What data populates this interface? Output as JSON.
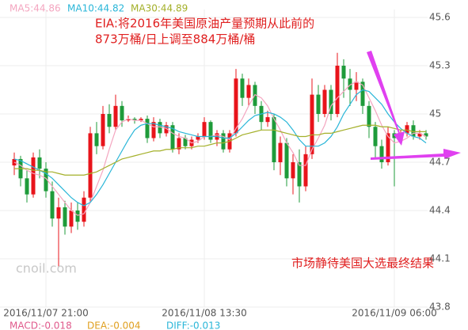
{
  "chart_data": {
    "type": "candlestick",
    "legend": [
      {
        "name": "MA5:44.86",
        "color": "#f4a6c0"
      },
      {
        "name": "MA10:44.82",
        "color": "#2ab6d8"
      },
      {
        "name": "MA30:44.89",
        "color": "#a4b02a"
      }
    ],
    "series": [
      {
        "name": "MA5",
        "color": "#f4a6c0",
        "values": [
          44.7,
          44.68,
          44.65,
          44.63,
          44.62,
          44.6,
          44.55,
          44.5,
          44.45,
          44.4,
          44.37,
          44.38,
          44.45,
          44.55,
          44.65,
          44.78,
          44.9,
          44.95,
          44.97,
          44.96,
          44.96,
          44.94,
          44.92,
          44.92,
          44.91,
          44.88,
          44.86,
          44.85,
          44.82,
          44.83,
          44.86,
          44.86,
          44.87,
          44.86,
          44.84,
          44.91,
          44.97,
          45.05,
          45.12,
          45.1,
          45.05,
          44.97,
          44.9,
          44.82,
          44.76,
          44.68,
          44.68,
          44.78,
          44.85,
          44.93,
          45.05,
          45.1,
          45.14,
          45.18,
          45.2,
          45.18,
          45.1,
          45.02,
          44.93,
          44.86,
          44.82,
          44.83,
          44.85,
          44.88,
          44.88,
          44.86
        ]
      },
      {
        "name": "MA10",
        "color": "#2ab6d8",
        "values": [
          44.72,
          44.71,
          44.69,
          44.67,
          44.65,
          44.63,
          44.6,
          44.56,
          44.52,
          44.48,
          44.45,
          44.43,
          44.45,
          44.5,
          44.56,
          44.63,
          44.7,
          44.77,
          44.84,
          44.9,
          44.93,
          44.94,
          44.94,
          44.93,
          44.92,
          44.91,
          44.89,
          44.88,
          44.87,
          44.86,
          44.86,
          44.86,
          44.86,
          44.85,
          44.85,
          44.88,
          44.92,
          44.96,
          44.99,
          45.0,
          45.01,
          45.0,
          44.98,
          44.95,
          44.9,
          44.84,
          44.8,
          44.8,
          44.8,
          44.82,
          44.86,
          44.92,
          45.0,
          45.06,
          45.12,
          45.15,
          45.14,
          45.1,
          45.06,
          45.0,
          44.95,
          44.91,
          44.88,
          44.86,
          44.85,
          44.82
        ]
      },
      {
        "name": "MA30",
        "color": "#a4b02a",
        "values": [
          44.66,
          44.66,
          44.66,
          44.65,
          44.65,
          44.64,
          44.64,
          44.63,
          44.62,
          44.62,
          44.62,
          44.62,
          44.63,
          44.64,
          44.66,
          44.68,
          44.7,
          44.72,
          44.73,
          44.74,
          44.75,
          44.76,
          44.77,
          44.77,
          44.78,
          44.78,
          44.79,
          44.79,
          44.79,
          44.8,
          44.8,
          44.81,
          44.82,
          44.82,
          44.83,
          44.85,
          44.87,
          44.88,
          44.89,
          44.9,
          44.9,
          44.9,
          44.89,
          44.88,
          44.87,
          44.86,
          44.86,
          44.87,
          44.87,
          44.88,
          44.88,
          44.89,
          44.9,
          44.91,
          44.92,
          44.93,
          44.93,
          44.93,
          44.92,
          44.92,
          44.91,
          44.9,
          44.9,
          44.89,
          44.89,
          44.89
        ]
      }
    ],
    "categories": [
      null,
      null,
      null,
      null,
      null,
      "2016/11/07 21:00",
      null,
      null,
      null,
      null,
      null,
      null,
      null,
      null,
      null,
      null,
      null,
      null,
      null,
      null,
      null,
      null,
      null,
      null,
      null,
      null,
      null,
      null,
      null,
      null,
      "2016/11/08 13:30",
      null,
      null,
      null,
      null,
      null,
      null,
      null,
      null,
      null,
      null,
      null,
      null,
      null,
      null,
      null,
      null,
      null,
      null,
      null,
      null,
      null,
      null,
      null,
      null,
      null,
      null,
      null,
      null,
      null,
      "2016/11/09 06:00",
      null,
      null,
      null,
      null,
      null
    ],
    "open": [
      44.68,
      44.72,
      44.6,
      44.5,
      44.73,
      44.66,
      44.52,
      44.35,
      44.42,
      44.3,
      44.4,
      44.33,
      44.48,
      44.88,
      44.8,
      45.0,
      44.92,
      45.05,
      44.96,
      44.97,
      44.96,
      44.97,
      44.85,
      44.95,
      44.88,
      44.93,
      44.78,
      44.85,
      44.8,
      44.84,
      44.86,
      44.95,
      44.84,
      44.88,
      44.78,
      44.88,
      45.22,
      45.1,
      45.18,
      45.05,
      44.95,
      44.98,
      44.7,
      44.82,
      44.6,
      44.7,
      44.55,
      44.75,
      45.12,
      45.0,
      45.15,
      45.0,
      45.3,
      45.22,
      45.15,
      45.2,
      45.05,
      44.92,
      44.8,
      44.7,
      44.88,
      44.85,
      44.88,
      44.93,
      44.86,
      44.88
    ],
    "high": [
      44.76,
      44.74,
      44.65,
      44.76,
      44.78,
      44.7,
      44.58,
      44.48,
      44.46,
      44.45,
      44.45,
      44.52,
      44.92,
      44.95,
      45.05,
      45.06,
      45.12,
      45.08,
      44.99,
      44.98,
      44.98,
      44.99,
      44.98,
      44.97,
      44.95,
      44.95,
      44.88,
      44.87,
      44.86,
      44.88,
      44.98,
      44.96,
      44.9,
      44.9,
      44.9,
      45.28,
      45.25,
      45.22,
      45.2,
      45.08,
      45.02,
      45.0,
      44.86,
      44.85,
      44.75,
      44.78,
      44.8,
      45.22,
      45.18,
      45.18,
      45.18,
      45.38,
      45.34,
      45.28,
      45.26,
      45.22,
      45.08,
      44.95,
      44.84,
      44.92,
      44.9,
      44.9,
      44.95,
      44.96,
      44.9,
      44.9
    ],
    "low": [
      44.62,
      44.55,
      44.45,
      44.48,
      44.6,
      44.48,
      44.3,
      44.05,
      44.25,
      44.26,
      44.28,
      44.3,
      44.45,
      44.75,
      44.78,
      44.88,
      44.9,
      44.92,
      44.95,
      44.94,
      44.95,
      44.82,
      44.83,
      44.85,
      44.86,
      44.76,
      44.75,
      44.78,
      44.78,
      44.82,
      44.84,
      44.82,
      44.8,
      44.76,
      44.76,
      44.86,
      45.05,
      45.05,
      45.0,
      44.9,
      44.92,
      44.65,
      44.62,
      44.55,
      44.5,
      44.45,
      44.52,
      44.72,
      44.95,
      44.98,
      44.96,
      44.98,
      45.1,
      45.05,
      45.08,
      45.0,
      44.85,
      44.72,
      44.66,
      44.68,
      44.55,
      44.82,
      44.86,
      44.84,
      44.84,
      44.84
    ],
    "close": [
      44.72,
      44.6,
      44.5,
      44.73,
      44.66,
      44.52,
      44.35,
      44.42,
      44.3,
      44.4,
      44.33,
      44.48,
      44.88,
      44.8,
      45.0,
      44.92,
      45.05,
      44.96,
      44.97,
      44.96,
      44.97,
      44.85,
      44.95,
      44.88,
      44.93,
      44.78,
      44.85,
      44.8,
      44.84,
      44.86,
      44.95,
      44.84,
      44.88,
      44.78,
      44.88,
      45.22,
      45.1,
      45.18,
      45.05,
      44.95,
      44.98,
      44.7,
      44.82,
      44.6,
      44.7,
      44.55,
      44.75,
      45.12,
      45.0,
      45.15,
      45.0,
      45.3,
      45.22,
      45.15,
      45.2,
      45.05,
      44.92,
      44.8,
      44.7,
      44.88,
      44.85,
      44.88,
      44.93,
      44.86,
      44.88,
      44.86
    ],
    "up_color": "#e8141b",
    "down_color": "#1e9b3a",
    "ylim": [
      43.8,
      45.6
    ],
    "yticks": [
      43.8,
      44.1,
      44.4,
      44.7,
      45,
      45.3,
      45.6
    ],
    "grid": true,
    "annotations": [
      "EIA:将2016年美国原油产量预期从此前的",
      "873万桶/日上调至884万桶/桶",
      "市场静待美国大选最终结果"
    ],
    "watermark": "cnoil.com",
    "indicators": [
      {
        "name": "MACD:-0.018",
        "color": "#e05a8c"
      },
      {
        "name": "DEA:-0.004",
        "color": "#e0a020"
      },
      {
        "name": "DIFF:-0.013",
        "color": "#2ab6d8"
      }
    ]
  }
}
